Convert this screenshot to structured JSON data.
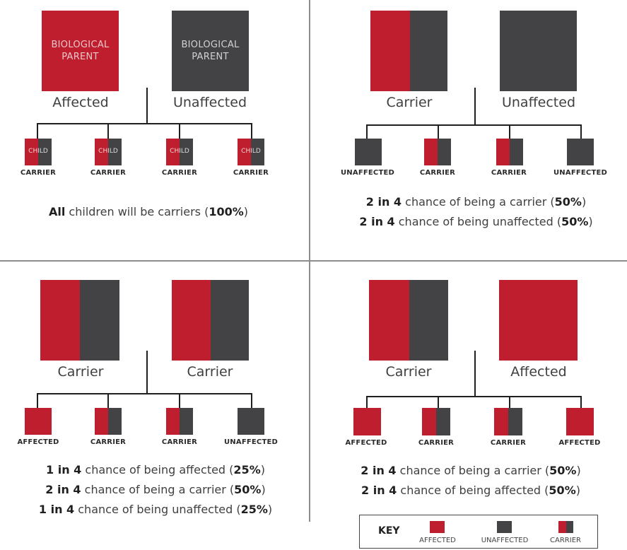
{
  "q1": {
    "parent_text_1": "BIOLOGICAL",
    "parent_text_2": "PARENT",
    "parent_a": "Affected",
    "parent_b": "Unaffected",
    "child_text": "CHILD",
    "children": [
      "CARRIER",
      "CARRIER",
      "CARRIER",
      "CARRIER"
    ],
    "summary": {
      "bold": "All",
      "mid": " children will be carriers (",
      "pct": "100%",
      "end": ")"
    }
  },
  "q2": {
    "parent_a": "Carrier",
    "parent_b": "Unaffected",
    "children": [
      "UNAFFECTED",
      "CARRIER",
      "CARRIER",
      "UNAFFECTED"
    ],
    "line1": {
      "bold": "2 in 4",
      "mid": " chance of being a carrier (",
      "pct": "50%",
      "end": ")"
    },
    "line2": {
      "bold": "2 in 4",
      "mid": " chance of being unaffected (",
      "pct": "50%",
      "end": ")"
    }
  },
  "q3": {
    "parent_a": "Carrier",
    "parent_b": "Carrier",
    "children": [
      "AFFECTED",
      "CARRIER",
      "CARRIER",
      "UNAFFECTED"
    ],
    "line1": {
      "bold": "1 in 4",
      "mid": " chance of being affected (",
      "pct": "25%",
      "end": ")"
    },
    "line2": {
      "bold": "2 in 4",
      "mid": " chance of being a carrier (",
      "pct": "50%",
      "end": ")"
    },
    "line3": {
      "bold": "1 in 4",
      "mid": " chance of being unaffected (",
      "pct": "25%",
      "end": ")"
    }
  },
  "q4": {
    "parent_a": "Carrier",
    "parent_b": "Affected",
    "children": [
      "AFFECTED",
      "CARRIER",
      "CARRIER",
      "AFFECTED"
    ],
    "line1": {
      "bold": "2 in 4",
      "mid": " chance of being a carrier (",
      "pct": "50%",
      "end": ")"
    },
    "line2": {
      "bold": "2 in 4",
      "mid": " chance of being affected (",
      "pct": "50%",
      "end": ")"
    }
  },
  "key": {
    "title": "KEY",
    "affected": "AFFECTED",
    "unaffected": "UNAFFECTED",
    "carrier": "CARRIER"
  },
  "colors": {
    "affected": "#be1e2d",
    "unaffected": "#434345"
  }
}
